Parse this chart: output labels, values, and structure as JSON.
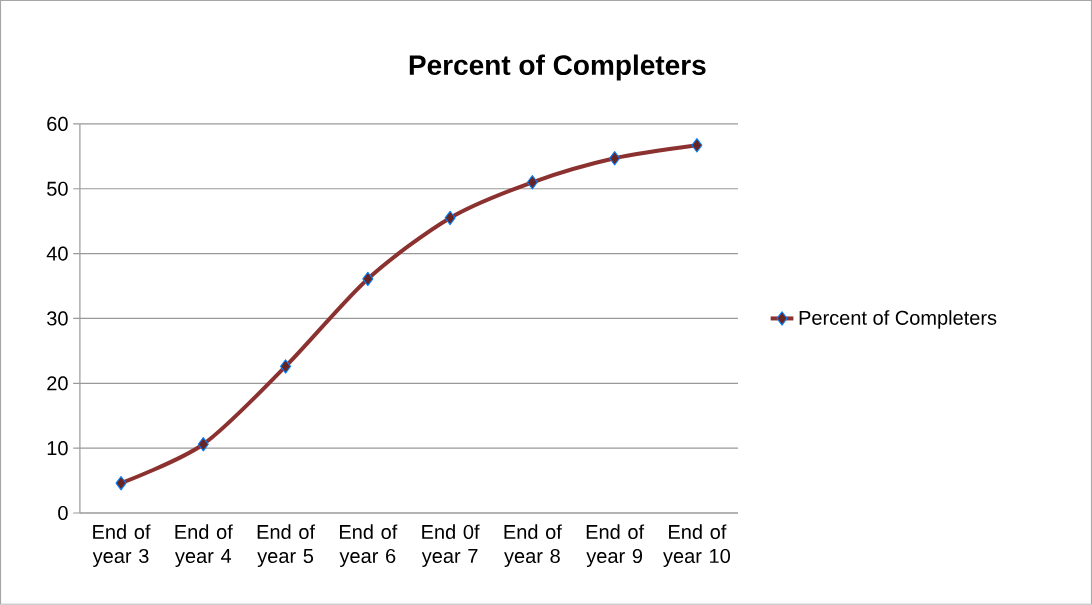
{
  "chart_data": {
    "type": "line",
    "title": "Percent of Completers",
    "categories": [
      "End of year 3",
      "End of year 4",
      "End of year 5",
      "End of year 6",
      "End 0f year 7",
      "End of year 8",
      "End of year 9",
      "End of year 10"
    ],
    "series": [
      {
        "name": "Percent of Completers",
        "color": "#8b3230",
        "values": [
          4.6,
          10.6,
          22.6,
          36.1,
          45.5,
          51.0,
          54.7,
          56.7
        ]
      }
    ],
    "ylim": [
      0,
      60
    ],
    "yticks": [
      0,
      10,
      20,
      30,
      40,
      50,
      60
    ],
    "grid": "y",
    "legend": "right",
    "marker": "diamond",
    "line_style": "solid"
  }
}
